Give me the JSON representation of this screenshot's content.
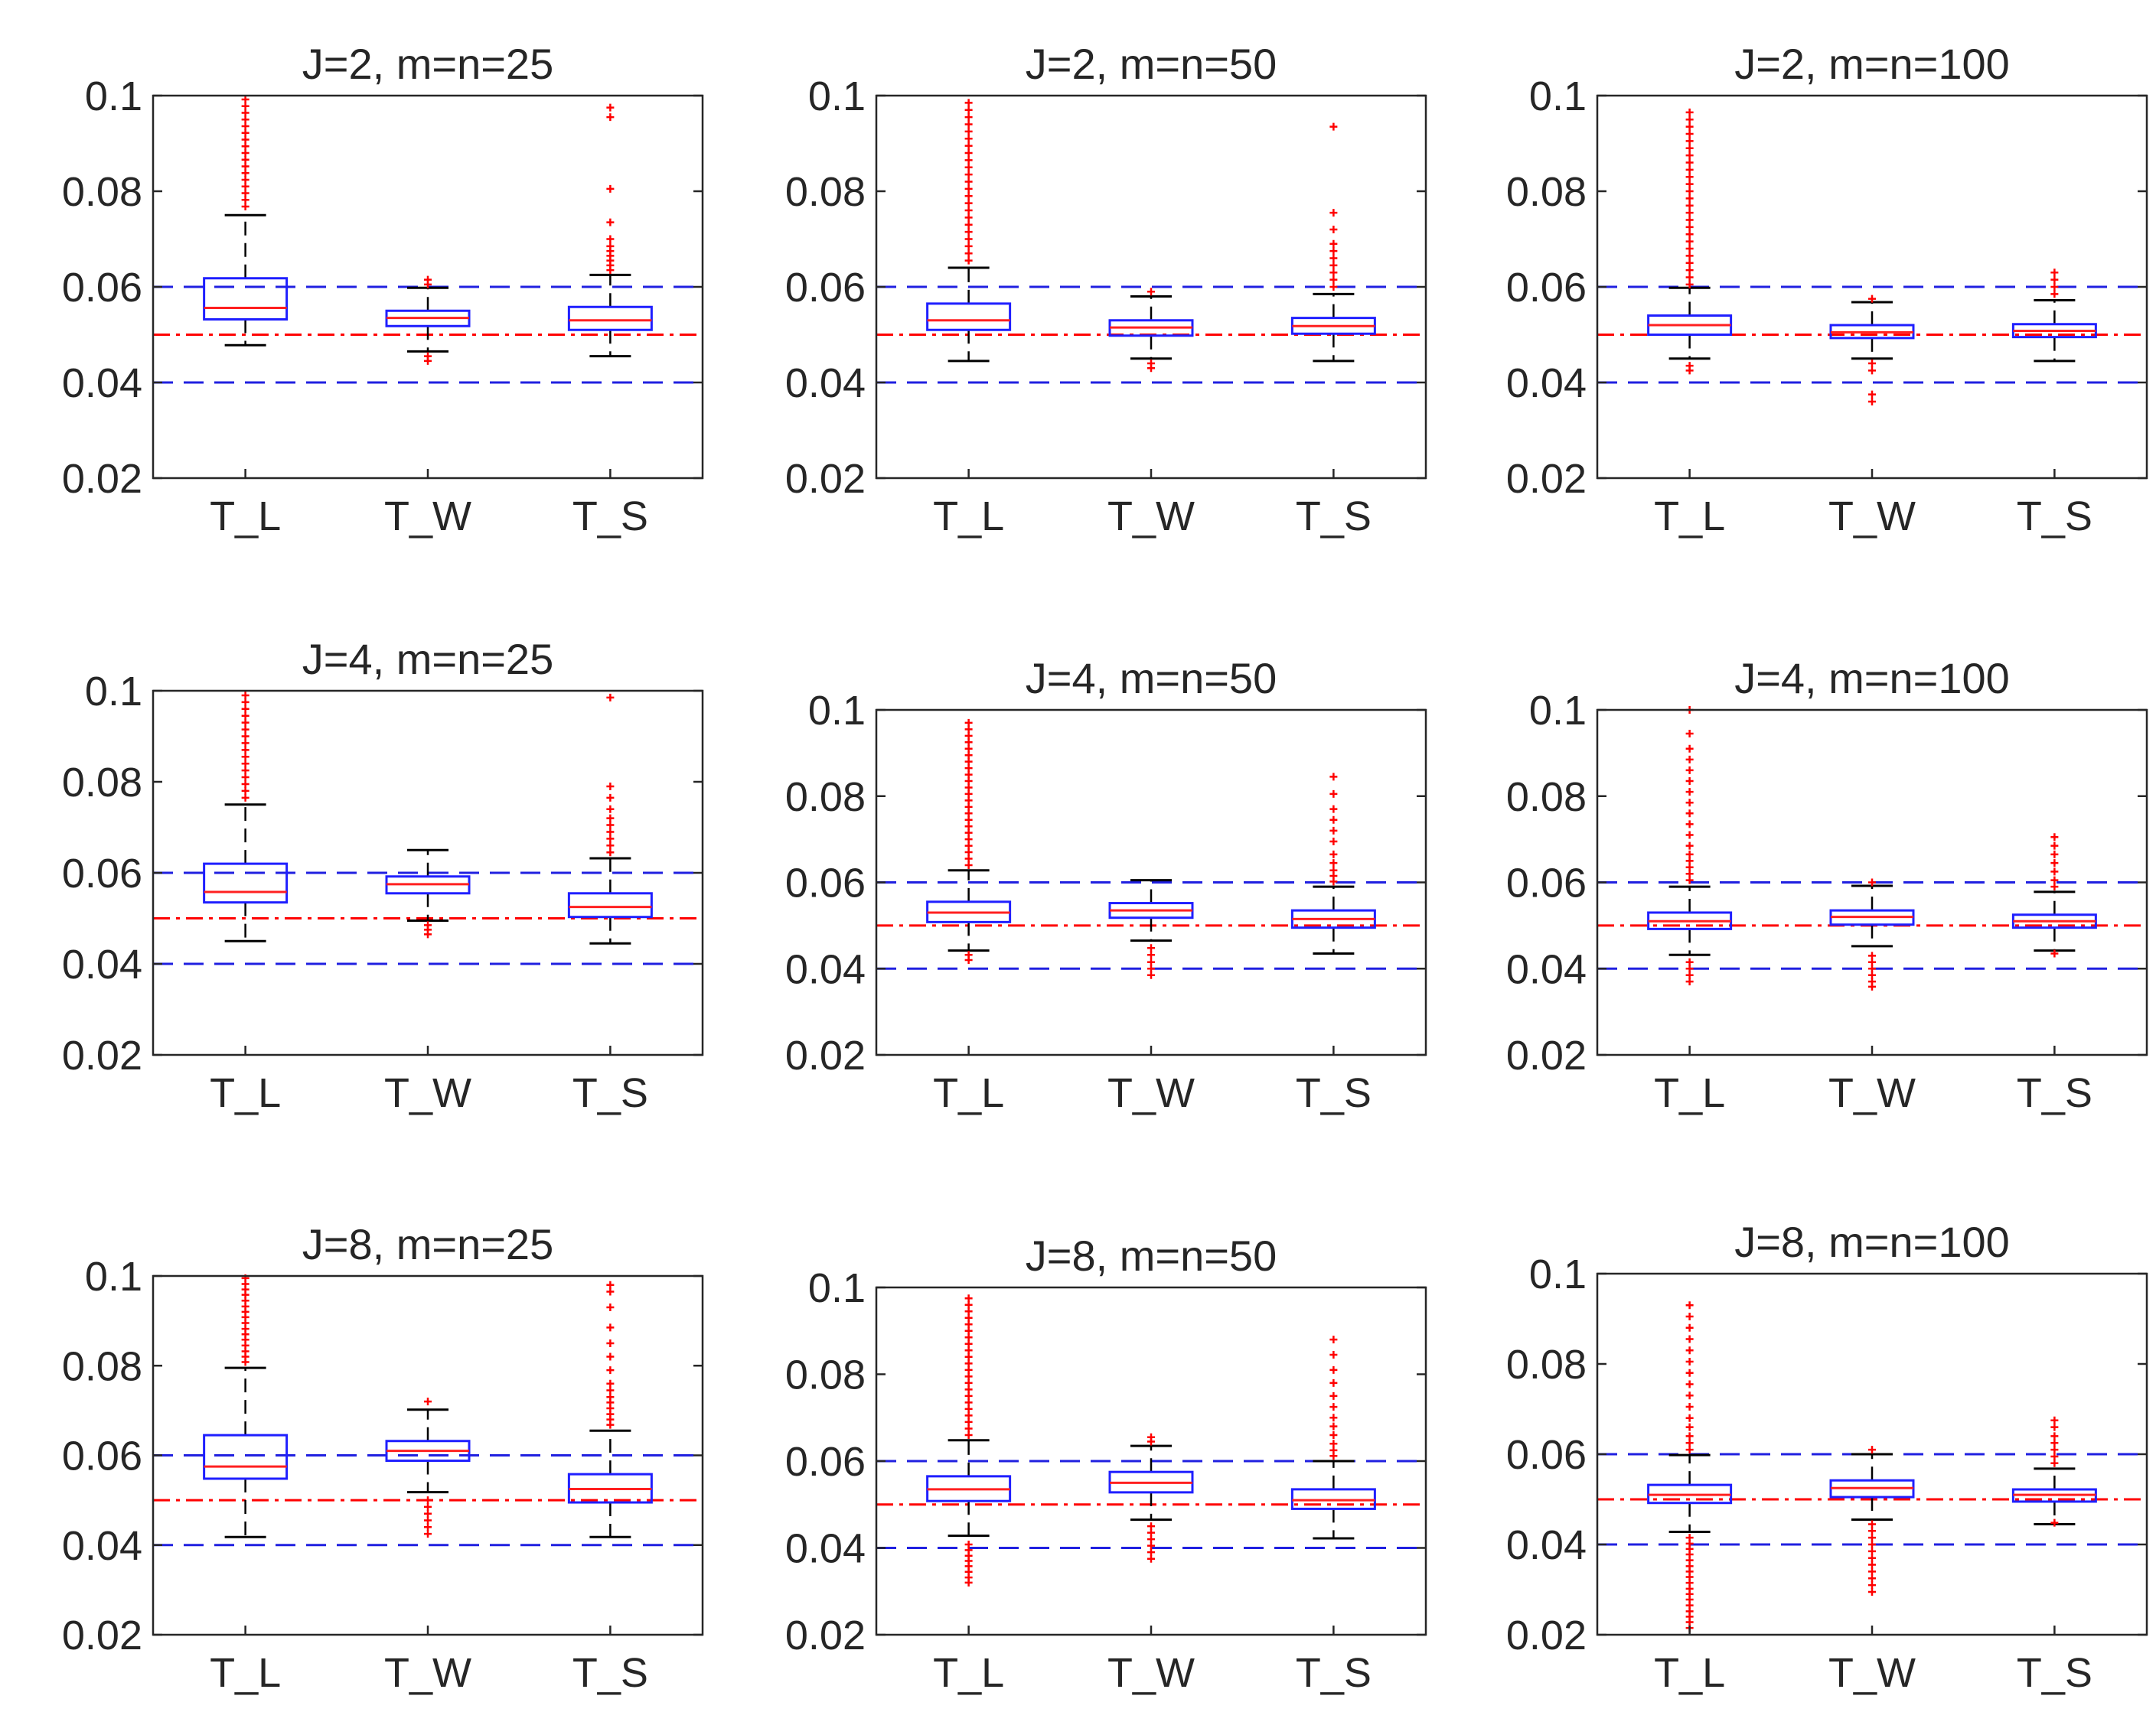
{
  "figure": {
    "y_tick_labels": [
      "0.02",
      "0.04",
      "0.06",
      "0.08",
      "0.1"
    ],
    "colors": {
      "box": "#1f1fff",
      "median": "#ff2020",
      "outlier": "#ff0000",
      "whisker": "#000000",
      "bound": "#2020e0",
      "nominal": "#ff0000",
      "axis": "#262626"
    }
  },
  "chart_data": [
    {
      "type": "boxplot",
      "title": "J=2, m=n=25",
      "categories": [
        "T_L",
        "T_W",
        "T_S"
      ],
      "ylim": [
        0.02,
        0.1
      ],
      "yticks": [
        0.02,
        0.04,
        0.06,
        0.08,
        0.1
      ],
      "reference_lines": {
        "nominal": 0.05,
        "lower": 0.04,
        "upper": 0.06
      },
      "boxes": [
        {
          "q1": 0.0532,
          "median": 0.0556,
          "q3": 0.0618,
          "wlow": 0.0478,
          "whigh": 0.075,
          "outliers": [
            0.0768,
            0.0782,
            0.0796,
            0.081,
            0.0824,
            0.0838,
            0.0852,
            0.0866,
            0.088,
            0.0894,
            0.0908,
            0.0922,
            0.0936,
            0.095,
            0.0964,
            0.0978,
            0.0992
          ]
        },
        {
          "q1": 0.0518,
          "median": 0.0535,
          "q3": 0.055,
          "wlow": 0.0465,
          "whigh": 0.0598,
          "outliers": [
            0.0445,
            0.0455,
            0.0605,
            0.0615
          ]
        },
        {
          "q1": 0.051,
          "median": 0.053,
          "q3": 0.0558,
          "wlow": 0.0455,
          "whigh": 0.0625,
          "outliers": [
            0.0635,
            0.0645,
            0.0655,
            0.0665,
            0.0675,
            0.0685,
            0.07,
            0.0735,
            0.0805,
            0.0955,
            0.0975
          ]
        }
      ]
    },
    {
      "type": "boxplot",
      "title": "J=2, m=n=50",
      "categories": [
        "T_L",
        "T_W",
        "T_S"
      ],
      "ylim": [
        0.02,
        0.1
      ],
      "yticks": [
        0.02,
        0.04,
        0.06,
        0.08,
        0.1
      ],
      "reference_lines": {
        "nominal": 0.05,
        "lower": 0.04,
        "upper": 0.06
      },
      "boxes": [
        {
          "q1": 0.051,
          "median": 0.053,
          "q3": 0.0565,
          "wlow": 0.0445,
          "whigh": 0.064,
          "outliers": [
            0.0655,
            0.067,
            0.0685,
            0.07,
            0.0715,
            0.073,
            0.0745,
            0.076,
            0.0775,
            0.079,
            0.0805,
            0.082,
            0.0835,
            0.085,
            0.0865,
            0.088,
            0.0895,
            0.091,
            0.0925,
            0.094,
            0.0955,
            0.097,
            0.0985
          ]
        },
        {
          "q1": 0.0498,
          "median": 0.0515,
          "q3": 0.053,
          "wlow": 0.045,
          "whigh": 0.058,
          "outliers": [
            0.043,
            0.044,
            0.059
          ]
        },
        {
          "q1": 0.0502,
          "median": 0.0518,
          "q3": 0.0535,
          "wlow": 0.0445,
          "whigh": 0.0585,
          "outliers": [
            0.06,
            0.0615,
            0.063,
            0.0645,
            0.066,
            0.0675,
            0.069,
            0.072,
            0.0755,
            0.0935
          ]
        }
      ]
    },
    {
      "type": "boxplot",
      "title": "J=2, m=n=100",
      "categories": [
        "T_L",
        "T_W",
        "T_S"
      ],
      "ylim": [
        0.02,
        0.1
      ],
      "yticks": [
        0.02,
        0.04,
        0.06,
        0.08,
        0.1
      ],
      "reference_lines": {
        "nominal": 0.05,
        "lower": 0.04,
        "upper": 0.06
      },
      "boxes": [
        {
          "q1": 0.05,
          "median": 0.052,
          "q3": 0.054,
          "wlow": 0.045,
          "whigh": 0.0598,
          "outliers": [
            0.0425,
            0.0435,
            0.0605,
            0.062,
            0.0635,
            0.065,
            0.0665,
            0.068,
            0.0695,
            0.071,
            0.0725,
            0.074,
            0.0755,
            0.077,
            0.0785,
            0.08,
            0.0815,
            0.083,
            0.0845,
            0.086,
            0.0875,
            0.089,
            0.0905,
            0.092,
            0.0935,
            0.095,
            0.0965
          ]
        },
        {
          "q1": 0.0493,
          "median": 0.0505,
          "q3": 0.052,
          "wlow": 0.045,
          "whigh": 0.0568,
          "outliers": [
            0.036,
            0.0375,
            0.0425,
            0.044,
            0.0575
          ]
        },
        {
          "q1": 0.0495,
          "median": 0.0508,
          "q3": 0.0522,
          "wlow": 0.0445,
          "whigh": 0.0572,
          "outliers": [
            0.0585,
            0.06,
            0.0615,
            0.063
          ]
        }
      ]
    },
    {
      "type": "boxplot",
      "title": "J=4, m=n=25",
      "categories": [
        "T_L",
        "T_W",
        "T_S"
      ],
      "ylim": [
        0.02,
        0.1
      ],
      "yticks": [
        0.02,
        0.04,
        0.06,
        0.08,
        0.1
      ],
      "reference_lines": {
        "nominal": 0.05,
        "lower": 0.04,
        "upper": 0.06
      },
      "boxes": [
        {
          "q1": 0.0535,
          "median": 0.0558,
          "q3": 0.062,
          "wlow": 0.045,
          "whigh": 0.075,
          "outliers": [
            0.0765,
            0.078,
            0.0795,
            0.081,
            0.0825,
            0.084,
            0.0855,
            0.087,
            0.0885,
            0.09,
            0.0915,
            0.093,
            0.0945,
            0.096,
            0.0975,
            0.099
          ]
        },
        {
          "q1": 0.0555,
          "median": 0.0575,
          "q3": 0.0592,
          "wlow": 0.0495,
          "whigh": 0.065,
          "outliers": [
            0.0465,
            0.0475,
            0.0485
          ]
        },
        {
          "q1": 0.0503,
          "median": 0.0525,
          "q3": 0.0555,
          "wlow": 0.0445,
          "whigh": 0.0632,
          "outliers": [
            0.0645,
            0.066,
            0.0675,
            0.069,
            0.0705,
            0.072,
            0.074,
            0.0765,
            0.079,
            0.0985
          ]
        }
      ]
    },
    {
      "type": "boxplot",
      "title": "J=4, m=n=50",
      "categories": [
        "T_L",
        "T_W",
        "T_S"
      ],
      "ylim": [
        0.02,
        0.1
      ],
      "yticks": [
        0.02,
        0.04,
        0.06,
        0.08,
        0.1
      ],
      "reference_lines": {
        "nominal": 0.05,
        "lower": 0.04,
        "upper": 0.06
      },
      "boxes": [
        {
          "q1": 0.0508,
          "median": 0.053,
          "q3": 0.0555,
          "wlow": 0.0442,
          "whigh": 0.0628,
          "outliers": [
            0.042,
            0.0432,
            0.064,
            0.0655,
            0.067,
            0.0685,
            0.07,
            0.0715,
            0.073,
            0.0745,
            0.076,
            0.0775,
            0.079,
            0.0805,
            0.082,
            0.0835,
            0.085,
            0.0865,
            0.088,
            0.0895,
            0.091,
            0.0925,
            0.094,
            0.0955,
            0.097
          ]
        },
        {
          "q1": 0.0518,
          "median": 0.0535,
          "q3": 0.0552,
          "wlow": 0.0465,
          "whigh": 0.0605,
          "outliers": [
            0.0385,
            0.04,
            0.0415,
            0.0432,
            0.0448
          ]
        },
        {
          "q1": 0.0495,
          "median": 0.0515,
          "q3": 0.0535,
          "wlow": 0.0435,
          "whigh": 0.059,
          "outliers": [
            0.0602,
            0.0615,
            0.0628,
            0.0645,
            0.0665,
            0.0695,
            0.072,
            0.0745,
            0.077,
            0.0805,
            0.0845
          ]
        }
      ]
    },
    {
      "type": "boxplot",
      "title": "J=4, m=n=100",
      "categories": [
        "T_L",
        "T_W",
        "T_S"
      ],
      "ylim": [
        0.02,
        0.1
      ],
      "yticks": [
        0.02,
        0.04,
        0.06,
        0.08,
        0.1
      ],
      "reference_lines": {
        "nominal": 0.05,
        "lower": 0.04,
        "upper": 0.06
      },
      "boxes": [
        {
          "q1": 0.0492,
          "median": 0.051,
          "q3": 0.053,
          "wlow": 0.0432,
          "whigh": 0.059,
          "outliers": [
            0.037,
            0.0385,
            0.04,
            0.0415,
            0.0605,
            0.062,
            0.0635,
            0.065,
            0.0665,
            0.0685,
            0.071,
            0.0735,
            0.076,
            0.0785,
            0.081,
            0.0835,
            0.086,
            0.0885,
            0.091,
            0.0945,
            0.1
          ]
        },
        {
          "q1": 0.0502,
          "median": 0.052,
          "q3": 0.0535,
          "wlow": 0.0452,
          "whigh": 0.0592,
          "outliers": [
            0.0358,
            0.037,
            0.0385,
            0.04,
            0.0415,
            0.043,
            0.06
          ]
        },
        {
          "q1": 0.0495,
          "median": 0.051,
          "q3": 0.0525,
          "wlow": 0.0442,
          "whigh": 0.0578,
          "outliers": [
            0.0435,
            0.059,
            0.0605,
            0.0625,
            0.0645,
            0.0665,
            0.0685,
            0.0705
          ]
        }
      ]
    },
    {
      "type": "boxplot",
      "title": "J=8, m=n=25",
      "categories": [
        "T_L",
        "T_W",
        "T_S"
      ],
      "ylim": [
        0.02,
        0.1
      ],
      "yticks": [
        0.02,
        0.04,
        0.06,
        0.08,
        0.1
      ],
      "reference_lines": {
        "nominal": 0.05,
        "lower": 0.04,
        "upper": 0.06
      },
      "boxes": [
        {
          "q1": 0.0548,
          "median": 0.0575,
          "q3": 0.0645,
          "wlow": 0.0418,
          "whigh": 0.0795,
          "outliers": [
            0.0808,
            0.082,
            0.0832,
            0.0845,
            0.0858,
            0.087,
            0.0882,
            0.0895,
            0.0908,
            0.092,
            0.0932,
            0.0945,
            0.0958,
            0.097,
            0.0982,
            0.0995
          ]
        },
        {
          "q1": 0.0588,
          "median": 0.061,
          "q3": 0.0632,
          "wlow": 0.0518,
          "whigh": 0.0702,
          "outliers": [
            0.0425,
            0.044,
            0.0455,
            0.047,
            0.0485,
            0.05,
            0.072
          ]
        },
        {
          "q1": 0.0495,
          "median": 0.0525,
          "q3": 0.0558,
          "wlow": 0.0418,
          "whigh": 0.0655,
          "outliers": [
            0.0668,
            0.068,
            0.0692,
            0.0705,
            0.0718,
            0.073,
            0.0745,
            0.076,
            0.079,
            0.082,
            0.085,
            0.0885,
            0.093,
            0.0965,
            0.098
          ]
        }
      ]
    },
    {
      "type": "boxplot",
      "title": "J=8, m=n=50",
      "categories": [
        "T_L",
        "T_W",
        "T_S"
      ],
      "ylim": [
        0.02,
        0.1
      ],
      "yticks": [
        0.02,
        0.04,
        0.06,
        0.08,
        0.1
      ],
      "reference_lines": {
        "nominal": 0.05,
        "lower": 0.04,
        "upper": 0.06
      },
      "boxes": [
        {
          "q1": 0.0508,
          "median": 0.0535,
          "q3": 0.0565,
          "wlow": 0.0428,
          "whigh": 0.0648,
          "outliers": [
            0.032,
            0.0332,
            0.0345,
            0.0358,
            0.037,
            0.0382,
            0.0395,
            0.0408,
            0.066,
            0.0675,
            0.069,
            0.0705,
            0.072,
            0.0735,
            0.075,
            0.0765,
            0.078,
            0.0795,
            0.081,
            0.0825,
            0.084,
            0.0855,
            0.087,
            0.0885,
            0.09,
            0.0915,
            0.093,
            0.0945,
            0.096,
            0.0975
          ]
        },
        {
          "q1": 0.0528,
          "median": 0.055,
          "q3": 0.0575,
          "wlow": 0.0465,
          "whigh": 0.0635,
          "outliers": [
            0.0375,
            0.039,
            0.0405,
            0.042,
            0.0435,
            0.045,
            0.0645,
            0.0655
          ]
        },
        {
          "q1": 0.049,
          "median": 0.051,
          "q3": 0.0535,
          "wlow": 0.0422,
          "whigh": 0.06,
          "outliers": [
            0.0612,
            0.0625,
            0.064,
            0.066,
            0.068,
            0.07,
            0.0725,
            0.075,
            0.078,
            0.081,
            0.0845,
            0.088
          ]
        }
      ]
    },
    {
      "type": "boxplot",
      "title": "J=8, m=n=100",
      "categories": [
        "T_L",
        "T_W",
        "T_S"
      ],
      "ylim": [
        0.02,
        0.1
      ],
      "yticks": [
        0.02,
        0.04,
        0.06,
        0.08,
        0.1
      ],
      "reference_lines": {
        "nominal": 0.05,
        "lower": 0.04,
        "upper": 0.06
      },
      "boxes": [
        {
          "q1": 0.0492,
          "median": 0.051,
          "q3": 0.0532,
          "wlow": 0.0428,
          "whigh": 0.0598,
          "outliers": [
            0.0215,
            0.0228,
            0.024,
            0.0252,
            0.0265,
            0.0278,
            0.029,
            0.0302,
            0.0315,
            0.0328,
            0.034,
            0.0352,
            0.0365,
            0.0378,
            0.039,
            0.0402,
            0.0415,
            0.061,
            0.0625,
            0.064,
            0.066,
            0.068,
            0.0705,
            0.073,
            0.0755,
            0.078,
            0.0805,
            0.083,
            0.0855,
            0.088,
            0.0905,
            0.093
          ]
        },
        {
          "q1": 0.0505,
          "median": 0.0525,
          "q3": 0.0542,
          "wlow": 0.0455,
          "whigh": 0.06,
          "outliers": [
            0.0295,
            0.031,
            0.0325,
            0.034,
            0.0355,
            0.037,
            0.0385,
            0.04,
            0.0415,
            0.043,
            0.0445,
            0.061
          ]
        },
        {
          "q1": 0.0495,
          "median": 0.051,
          "q3": 0.0522,
          "wlow": 0.0445,
          "whigh": 0.0568,
          "outliers": [
            0.0448,
            0.058,
            0.0595,
            0.061,
            0.0625,
            0.064,
            0.066,
            0.0675
          ]
        }
      ]
    }
  ]
}
